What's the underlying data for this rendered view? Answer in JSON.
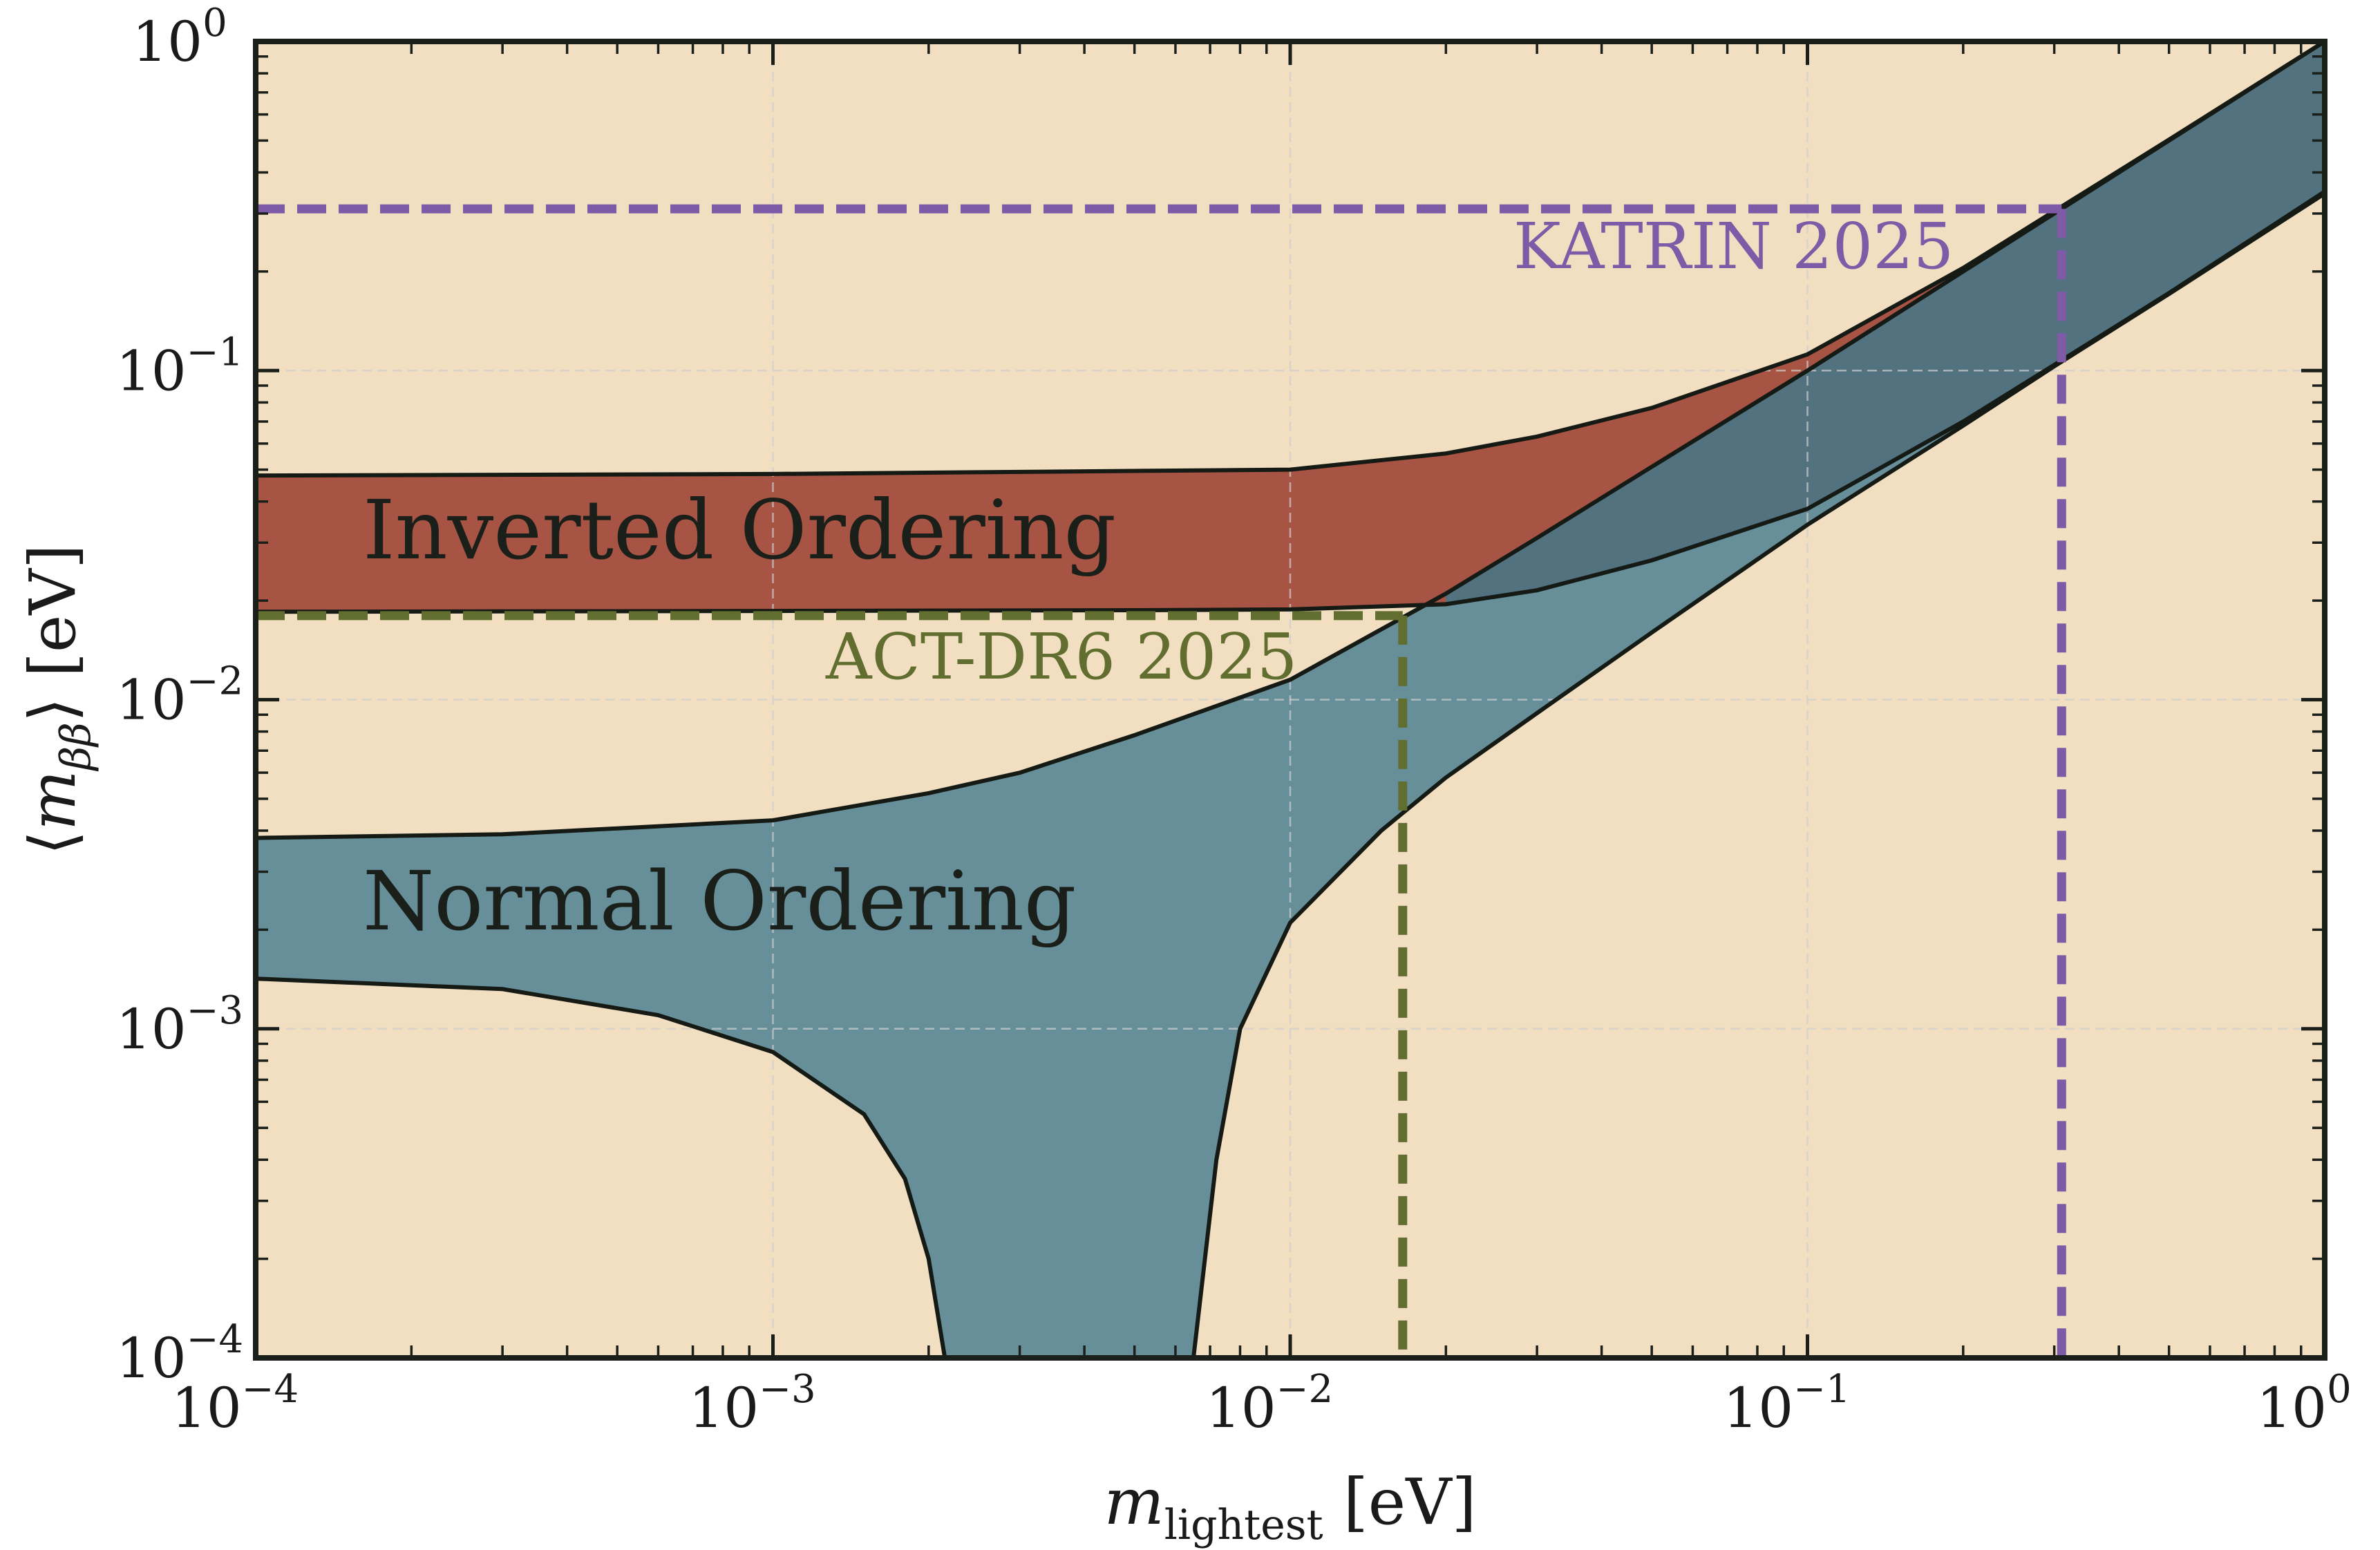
{
  "chart_data": {
    "type": "area",
    "title": "",
    "xlabel": {
      "symbol": "m",
      "sub": "lightest",
      "unit": " [eV]"
    },
    "ylabel": {
      "open": "⟨",
      "symbol": "m",
      "sub": "ββ",
      "close": "⟩",
      "unit": " [eV]"
    },
    "xscale": "log",
    "yscale": "log",
    "xlim": [
      0.0001,
      1
    ],
    "ylim": [
      0.0001,
      1
    ],
    "grid": true,
    "x_ticks": [
      {
        "value": 0.0001,
        "base": "10",
        "exp": "−4"
      },
      {
        "value": 0.001,
        "base": "10",
        "exp": "−3"
      },
      {
        "value": 0.01,
        "base": "10",
        "exp": "−2"
      },
      {
        "value": 0.1,
        "base": "10",
        "exp": "−1"
      },
      {
        "value": 1,
        "base": "10",
        "exp": "0"
      }
    ],
    "y_ticks": [
      {
        "value": 0.0001,
        "base": "10",
        "exp": "−4"
      },
      {
        "value": 0.001,
        "base": "10",
        "exp": "−3"
      },
      {
        "value": 0.01,
        "base": "10",
        "exp": "−2"
      },
      {
        "value": 0.1,
        "base": "10",
        "exp": "−1"
      },
      {
        "value": 1,
        "base": "10",
        "exp": "0"
      }
    ],
    "regions": [
      {
        "name": "Inverted Ordering",
        "color": "#a85445",
        "upper": [
          [
            0.0001,
            0.048
          ],
          [
            0.001,
            0.0485
          ],
          [
            0.01,
            0.05
          ],
          [
            0.02,
            0.056
          ],
          [
            0.03,
            0.063
          ],
          [
            0.05,
            0.077
          ],
          [
            0.1,
            0.112
          ],
          [
            0.2,
            0.205
          ],
          [
            0.3,
            0.305
          ],
          [
            0.5,
            0.503
          ],
          [
            1,
            1.0
          ]
        ],
        "lower": [
          [
            0.0001,
            0.0185
          ],
          [
            0.001,
            0.0186
          ],
          [
            0.005,
            0.0187
          ],
          [
            0.01,
            0.0188
          ],
          [
            0.02,
            0.0195
          ],
          [
            0.03,
            0.0215
          ],
          [
            0.05,
            0.0265
          ],
          [
            0.1,
            0.038
          ],
          [
            0.2,
            0.07
          ],
          [
            0.3,
            0.104
          ],
          [
            0.5,
            0.172
          ],
          [
            1,
            0.35
          ]
        ]
      },
      {
        "name": "Normal Ordering",
        "color": "#678f99",
        "upper": [
          [
            0.0001,
            0.0038
          ],
          [
            0.0003,
            0.0039
          ],
          [
            0.001,
            0.0043
          ],
          [
            0.002,
            0.0052
          ],
          [
            0.003,
            0.006
          ],
          [
            0.005,
            0.0078
          ],
          [
            0.01,
            0.0115
          ],
          [
            0.02,
            0.021
          ],
          [
            0.03,
            0.031
          ],
          [
            0.05,
            0.051
          ],
          [
            0.1,
            0.1
          ],
          [
            0.2,
            0.2
          ],
          [
            0.3,
            0.3
          ],
          [
            0.5,
            0.5
          ],
          [
            1,
            1.0
          ]
        ],
        "lower": [
          [
            0.0001,
            0.00142
          ],
          [
            0.0003,
            0.00132
          ],
          [
            0.0006,
            0.0011
          ],
          [
            0.001,
            0.00085
          ],
          [
            0.0015,
            0.00055
          ],
          [
            0.0018,
            0.00035
          ],
          [
            0.002,
            0.0002
          ],
          [
            0.00215,
            0.0001
          ],
          [
            0.0065,
            0.0001
          ],
          [
            0.0072,
            0.0004
          ],
          [
            0.008,
            0.001
          ],
          [
            0.01,
            0.0021
          ],
          [
            0.015,
            0.004
          ],
          [
            0.02,
            0.0058
          ],
          [
            0.03,
            0.0091
          ],
          [
            0.05,
            0.016
          ],
          [
            0.1,
            0.034
          ],
          [
            0.2,
            0.068
          ],
          [
            0.3,
            0.103
          ],
          [
            0.5,
            0.171
          ],
          [
            1,
            0.345
          ]
        ]
      }
    ],
    "limits": [
      {
        "name": "KATRIN 2025",
        "color": "#7f5aa6",
        "x": 0.31,
        "y": 0.31
      },
      {
        "name": "ACT-DR6 2025",
        "color": "#616e2f",
        "x": 0.0165,
        "y": 0.018
      }
    ],
    "colors": {
      "background": "#f2dfc2",
      "grid": "#cfcfcf",
      "frame": "#1a1f1a",
      "boundary": "#151a15"
    }
  }
}
